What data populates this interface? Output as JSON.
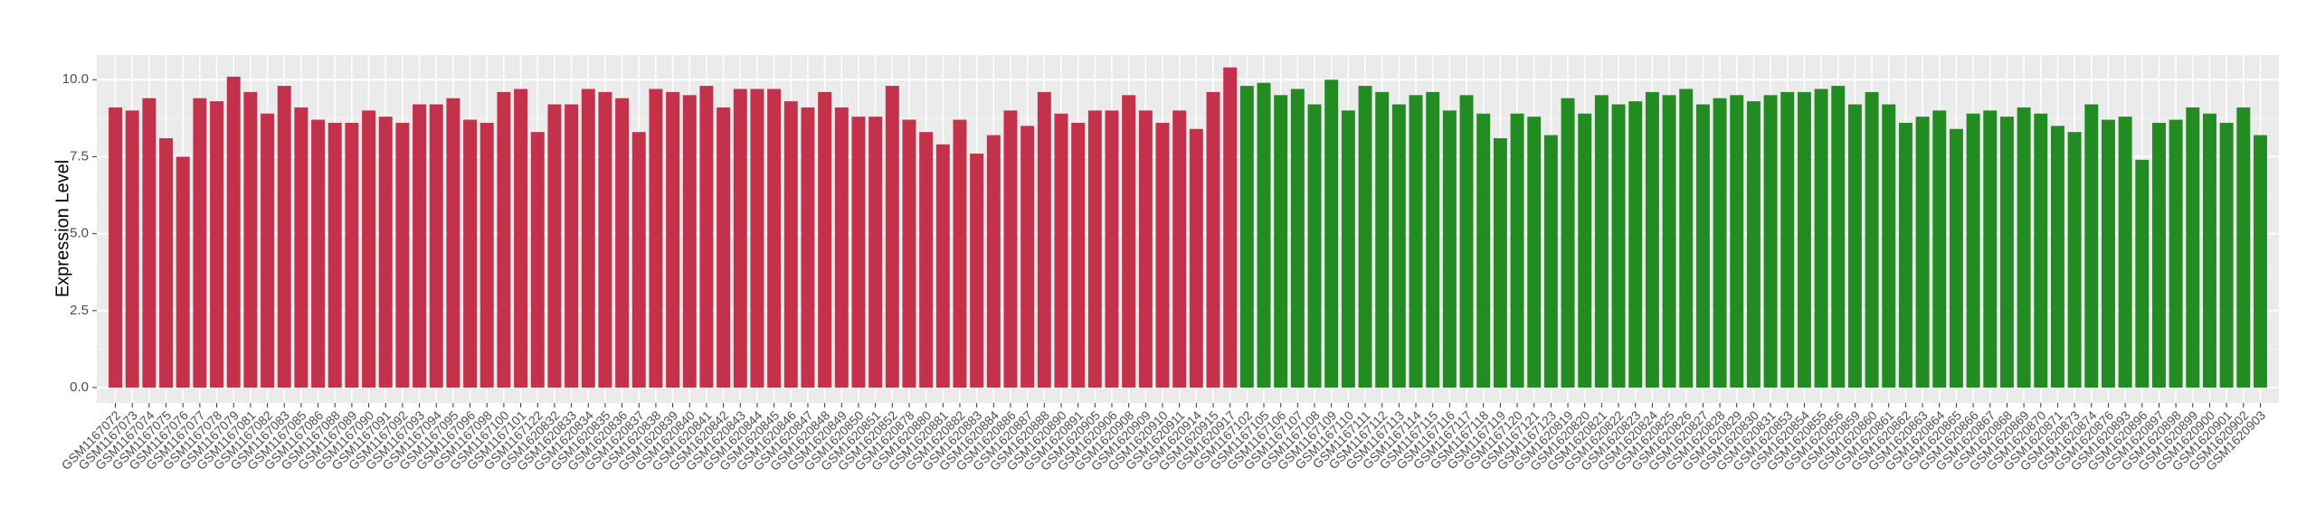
{
  "chart_data": {
    "type": "bar",
    "y_label": "Expression Level",
    "categories": [
      "GSM1167072",
      "GSM1167073",
      "GSM1167074",
      "GSM1167075",
      "GSM1167076",
      "GSM1167077",
      "GSM1167078",
      "GSM1167079",
      "GSM1167081",
      "GSM1167082",
      "GSM1167083",
      "GSM1167085",
      "GSM1167086",
      "GSM1167088",
      "GSM1167089",
      "GSM1167090",
      "GSM1167091",
      "GSM1167092",
      "GSM1167093",
      "GSM1167094",
      "GSM1167095",
      "GSM1167096",
      "GSM1167098",
      "GSM1167100",
      "GSM1167101",
      "GSM1167122",
      "GSM1620832",
      "GSM1620833",
      "GSM1620834",
      "GSM1620835",
      "GSM1620836",
      "GSM1620837",
      "GSM1620838",
      "GSM1620839",
      "GSM1620840",
      "GSM1620841",
      "GSM1620842",
      "GSM1620843",
      "GSM1620844",
      "GSM1620845",
      "GSM1620846",
      "GSM1620847",
      "GSM1620848",
      "GSM1620849",
      "GSM1620850",
      "GSM1620851",
      "GSM1620852",
      "GSM1620878",
      "GSM1620880",
      "GSM1620881",
      "GSM1620882",
      "GSM1620883",
      "GSM1620884",
      "GSM1620886",
      "GSM1620887",
      "GSM1620888",
      "GSM1620890",
      "GSM1620891",
      "GSM1620905",
      "GSM1620906",
      "GSM1620908",
      "GSM1620909",
      "GSM1620910",
      "GSM1620911",
      "GSM1620914",
      "GSM1620915",
      "GSM1620917",
      "GSM1167102",
      "GSM1167105",
      "GSM1167106",
      "GSM1167107",
      "GSM1167108",
      "GSM1167109",
      "GSM1167110",
      "GSM1167111",
      "GSM1167112",
      "GSM1167113",
      "GSM1167114",
      "GSM1167115",
      "GSM1167116",
      "GSM1167117",
      "GSM1167118",
      "GSM1167119",
      "GSM1167120",
      "GSM1167121",
      "GSM1167123",
      "GSM1620819",
      "GSM1620820",
      "GSM1620821",
      "GSM1620822",
      "GSM1620823",
      "GSM1620824",
      "GSM1620825",
      "GSM1620826",
      "GSM1620827",
      "GSM1620828",
      "GSM1620829",
      "GSM1620830",
      "GSM1620831",
      "GSM1620853",
      "GSM1620854",
      "GSM1620855",
      "GSM1620856",
      "GSM1620859",
      "GSM1620860",
      "GSM1620861",
      "GSM1620862",
      "GSM1620863",
      "GSM1620864",
      "GSM1620865",
      "GSM1620866",
      "GSM1620867",
      "GSM1620868",
      "GSM1620869",
      "GSM1620870",
      "GSM1620871",
      "GSM1620873",
      "GSM1620874",
      "GSM1620876",
      "GSM1620893",
      "GSM1620896",
      "GSM1620897",
      "GSM1620898",
      "GSM1620899",
      "GSM1620900",
      "GSM1620901",
      "GSM1620902",
      "GSM1620903"
    ],
    "series": [
      {
        "color": "#c4314b",
        "values": [
          9.1,
          9.0,
          9.4,
          8.1,
          7.5,
          9.4,
          9.3,
          10.1,
          9.6,
          8.9,
          9.8,
          9.1,
          8.7,
          8.6,
          8.6,
          9.0,
          8.8,
          8.6,
          9.2,
          9.2,
          9.4,
          8.7,
          8.6,
          9.6,
          9.7,
          8.3,
          9.2,
          9.2,
          9.7,
          9.6,
          9.4,
          8.3,
          9.7,
          9.6,
          9.5,
          9.8,
          9.1,
          9.7,
          9.7,
          9.7,
          9.3,
          9.1,
          9.6,
          9.1,
          8.8,
          8.8,
          9.8,
          8.7,
          8.3,
          7.9,
          8.7,
          7.6,
          8.2,
          9.0,
          8.5,
          9.6,
          8.9,
          8.6,
          9.0,
          9.0,
          9.5,
          9.0,
          8.6,
          9.0,
          8.4,
          9.6,
          10.4,
          null,
          null,
          null,
          null,
          null,
          null,
          null,
          null,
          null,
          null,
          null,
          null,
          null,
          null,
          null,
          null,
          null,
          null,
          null,
          null,
          null,
          null,
          null,
          null,
          null,
          null,
          null,
          null,
          null,
          null,
          null,
          null,
          null,
          null,
          null,
          null,
          null,
          null,
          null,
          null,
          null,
          null,
          null,
          null,
          null,
          null,
          null,
          null,
          null,
          null,
          null,
          null,
          null,
          null,
          null,
          null,
          null,
          null,
          null,
          null,
          null
        ]
      },
      {
        "color": "#228b22",
        "values": [
          null,
          null,
          null,
          null,
          null,
          null,
          null,
          null,
          null,
          null,
          null,
          null,
          null,
          null,
          null,
          null,
          null,
          null,
          null,
          null,
          null,
          null,
          null,
          null,
          null,
          null,
          null,
          null,
          null,
          null,
          null,
          null,
          null,
          null,
          null,
          null,
          null,
          null,
          null,
          null,
          null,
          null,
          null,
          null,
          null,
          null,
          null,
          null,
          null,
          null,
          null,
          null,
          null,
          null,
          null,
          null,
          null,
          null,
          null,
          null,
          null,
          null,
          null,
          null,
          null,
          null,
          null,
          9.8,
          9.9,
          9.5,
          9.7,
          9.2,
          10.0,
          9.0,
          9.8,
          9.6,
          9.2,
          9.5,
          9.6,
          9.0,
          9.5,
          8.9,
          8.1,
          8.9,
          8.8,
          8.2,
          9.4,
          8.9,
          9.5,
          9.2,
          9.3,
          9.6,
          9.5,
          9.7,
          9.2,
          9.4,
          9.5,
          9.3,
          9.5,
          9.6,
          9.6,
          9.7,
          9.8,
          9.2,
          9.6,
          9.2,
          8.6,
          8.8,
          9.0,
          8.4,
          8.9,
          9.0,
          8.8,
          9.1,
          8.9,
          8.5,
          8.3,
          9.2,
          8.7,
          8.8,
          7.4,
          8.6,
          8.7,
          9.1,
          8.9,
          8.6,
          9.1,
          8.2
        ]
      }
    ],
    "ylim": [
      -0.5,
      10.8
    ],
    "yticks": [
      {
        "value": 0,
        "label": "0.0"
      },
      {
        "value": 2.5,
        "label": "2.5"
      },
      {
        "value": 5,
        "label": "5.0"
      },
      {
        "value": 7.5,
        "label": "7.5"
      },
      {
        "value": 10,
        "label": "10.0"
      }
    ],
    "grid": true
  }
}
